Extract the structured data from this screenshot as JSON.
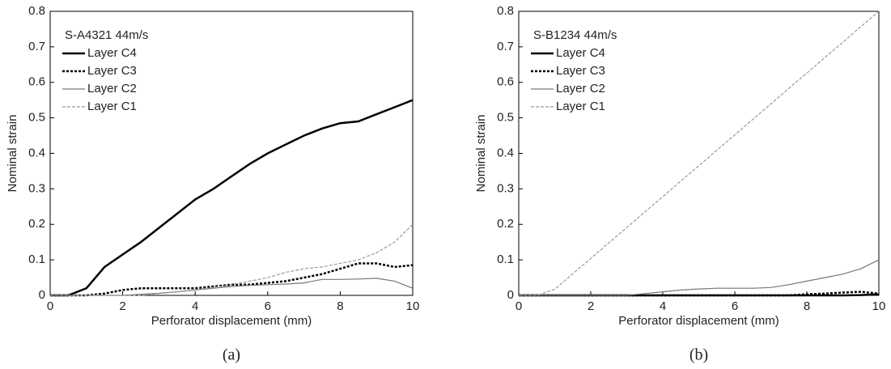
{
  "chart_data": [
    {
      "type": "line",
      "legend_title": "S-A4321 44m/s",
      "xlabel": "Perforator displacement (mm)",
      "ylabel": "Nominal strain",
      "caption": "(a)",
      "x": [
        0,
        0.5,
        1,
        1.5,
        2,
        2.5,
        3,
        3.5,
        4,
        4.5,
        5,
        5.5,
        6,
        6.5,
        7,
        7.5,
        8,
        8.5,
        9,
        9.5,
        10
      ],
      "series": [
        {
          "name": "Layer C4",
          "color": "#000000",
          "width": 2.5,
          "dash": "none",
          "values": [
            0,
            0,
            0.02,
            0.08,
            0.115,
            0.15,
            0.19,
            0.23,
            0.27,
            0.3,
            0.335,
            0.37,
            0.4,
            0.425,
            0.45,
            0.47,
            0.485,
            0.49,
            0.51,
            0.53,
            0.55
          ]
        },
        {
          "name": "Layer C3",
          "color": "#000000",
          "width": 2.5,
          "dash": "3 2",
          "values": [
            0,
            0,
            0,
            0.005,
            0.015,
            0.02,
            0.02,
            0.02,
            0.02,
            0.025,
            0.03,
            0.03,
            0.035,
            0.04,
            0.05,
            0.06,
            0.075,
            0.09,
            0.09,
            0.08,
            0.085
          ]
        },
        {
          "name": "Layer C2",
          "color": "#777777",
          "width": 1.2,
          "dash": "none",
          "values": [
            0,
            0,
            0,
            0,
            0,
            0.003,
            0.006,
            0.01,
            0.015,
            0.02,
            0.025,
            0.028,
            0.03,
            0.032,
            0.035,
            0.045,
            0.045,
            0.046,
            0.048,
            0.04,
            0.02
          ]
        },
        {
          "name": "Layer C1",
          "color": "#999999",
          "width": 1.2,
          "dash": "4 2",
          "values": [
            0,
            0,
            0,
            0,
            0,
            0,
            0.005,
            0.01,
            0.015,
            0.022,
            0.03,
            0.04,
            0.05,
            0.065,
            0.075,
            0.08,
            0.09,
            0.1,
            0.12,
            0.15,
            0.2
          ]
        }
      ],
      "xlim": [
        0,
        10
      ],
      "ylim": [
        0,
        0.8
      ],
      "xticks": [
        0,
        2,
        4,
        6,
        8,
        10
      ],
      "yticks": [
        0,
        0.1,
        0.2,
        0.3,
        0.4,
        0.5,
        0.6,
        0.7,
        0.8
      ],
      "grid": false,
      "legend": "upper-left"
    },
    {
      "type": "line",
      "legend_title": "S-B1234 44m/s",
      "xlabel": "Perforator displacement (mm)",
      "ylabel": "Nominal strain",
      "caption": "(b)",
      "x": [
        0,
        0.5,
        1,
        1.5,
        2,
        2.5,
        3,
        3.5,
        4,
        4.5,
        5,
        5.5,
        6,
        6.5,
        7,
        7.5,
        8,
        8.5,
        9,
        9.5,
        10
      ],
      "series": [
        {
          "name": "Layer C4",
          "color": "#000000",
          "width": 2.5,
          "dash": "none",
          "values": [
            0,
            0,
            0,
            0,
            0,
            0,
            0,
            0,
            0,
            0,
            0,
            0,
            0,
            0,
            0,
            0,
            0,
            0,
            0,
            0.001,
            0.003
          ]
        },
        {
          "name": "Layer C3",
          "color": "#000000",
          "width": 2.5,
          "dash": "3 2",
          "values": [
            0,
            0,
            0,
            0,
            0,
            0,
            0,
            0,
            0,
            0,
            0,
            0,
            0,
            0,
            0,
            0,
            0.003,
            0.005,
            0.008,
            0.01,
            0.005
          ]
        },
        {
          "name": "Layer C2",
          "color": "#777777",
          "width": 1.2,
          "dash": "none",
          "values": [
            0,
            0,
            0,
            0,
            0,
            0,
            0,
            0.005,
            0.01,
            0.015,
            0.018,
            0.02,
            0.02,
            0.02,
            0.022,
            0.03,
            0.04,
            0.05,
            0.06,
            0.075,
            0.1
          ]
        },
        {
          "name": "Layer C1",
          "color": "#999999",
          "width": 1.2,
          "dash": "4 2",
          "values": [
            0,
            0,
            0.017,
            0.061,
            0.104,
            0.148,
            0.191,
            0.235,
            0.278,
            0.322,
            0.365,
            0.409,
            0.452,
            0.496,
            0.539,
            0.583,
            0.626,
            0.67,
            0.713,
            0.757,
            0.8
          ]
        }
      ],
      "xlim": [
        0,
        10
      ],
      "ylim": [
        0,
        0.8
      ],
      "xticks": [
        0,
        2,
        4,
        6,
        8,
        10
      ],
      "yticks": [
        0,
        0.1,
        0.2,
        0.3,
        0.4,
        0.5,
        0.6,
        0.7,
        0.8
      ],
      "grid": false,
      "legend": "upper-left"
    }
  ]
}
